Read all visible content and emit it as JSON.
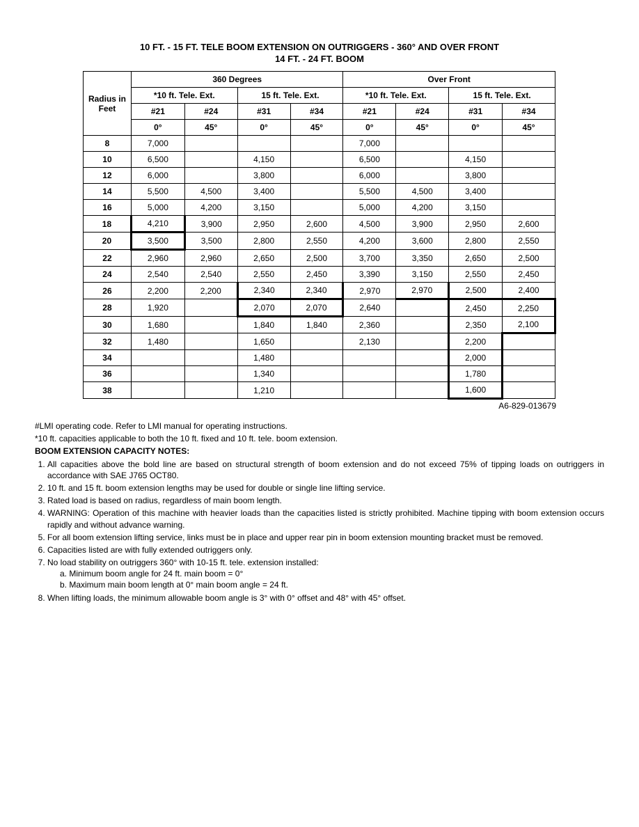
{
  "title_line1": "10 FT. - 15 FT. TELE BOOM EXTENSION ON OUTRIGGERS - 360° AND OVER FRONT",
  "title_line2": "14 FT. - 24 FT. BOOM",
  "reference": "A6-829-013679",
  "headers": {
    "radius": "Radius in Feet",
    "deg360": "360 Degrees",
    "overfront": "Over Front",
    "ext10": "*10 ft. Tele. Ext.",
    "ext15": "15 ft. Tele. Ext.",
    "c21": "#21",
    "c24": "#24",
    "c31": "#31",
    "c34": "#34",
    "a0": "0°",
    "a45": "45°"
  },
  "rows": [
    {
      "r": "8",
      "c": [
        "7,000",
        "",
        "",
        "",
        "7,000",
        "",
        "",
        ""
      ]
    },
    {
      "r": "10",
      "c": [
        "6,500",
        "",
        "4,150",
        "",
        "6,500",
        "",
        "4,150",
        ""
      ]
    },
    {
      "r": "12",
      "c": [
        "6,000",
        "",
        "3,800",
        "",
        "6,000",
        "",
        "3,800",
        ""
      ]
    },
    {
      "r": "14",
      "c": [
        "5,500",
        "4,500",
        "3,400",
        "",
        "5,500",
        "4,500",
        "3,400",
        ""
      ]
    },
    {
      "r": "16",
      "c": [
        "5,000",
        "4,200",
        "3,150",
        "",
        "5,000",
        "4,200",
        "3,150",
        ""
      ]
    },
    {
      "r": "18",
      "c": [
        "4,210",
        "3,900",
        "2,950",
        "2,600",
        "4,500",
        "3,900",
        "2,950",
        "2,600"
      ]
    },
    {
      "r": "20",
      "c": [
        "3,500",
        "3,500",
        "2,800",
        "2,550",
        "4,200",
        "3,600",
        "2,800",
        "2,550"
      ]
    },
    {
      "r": "22",
      "c": [
        "2,960",
        "2,960",
        "2,650",
        "2,500",
        "3,700",
        "3,350",
        "2,650",
        "2,500"
      ]
    },
    {
      "r": "24",
      "c": [
        "2,540",
        "2,540",
        "2,550",
        "2,450",
        "3,390",
        "3,150",
        "2,550",
        "2,450"
      ]
    },
    {
      "r": "26",
      "c": [
        "2,200",
        "2,200",
        "2,340",
        "2,340",
        "2,970",
        "2,970",
        "2,500",
        "2,400"
      ]
    },
    {
      "r": "28",
      "c": [
        "1,920",
        "",
        "2,070",
        "2,070",
        "2,640",
        "",
        "2,450",
        "2,250"
      ]
    },
    {
      "r": "30",
      "c": [
        "1,680",
        "",
        "1,840",
        "1,840",
        "2,360",
        "",
        "2,350",
        "2,100"
      ]
    },
    {
      "r": "32",
      "c": [
        "1,480",
        "",
        "1,650",
        "",
        "2,130",
        "",
        "2,200",
        ""
      ]
    },
    {
      "r": "34",
      "c": [
        "",
        "",
        "1,480",
        "",
        "",
        "",
        "2,000",
        ""
      ]
    },
    {
      "r": "36",
      "c": [
        "",
        "",
        "1,340",
        "",
        "",
        "",
        "1,780",
        ""
      ]
    },
    {
      "r": "38",
      "c": [
        "",
        "",
        "1,210",
        "",
        "",
        "",
        "1,600",
        ""
      ]
    }
  ],
  "bold_cells": {
    "5": {
      "0": "bold-bottom bold-left bold-right"
    },
    "6": {
      "0": "bold-left bold-right bold-bottom"
    },
    "9": {
      "2": "bold-bottom bold-left",
      "3": "bold-bottom bold-right",
      "5": "bold-bottom bold-right",
      "6": "bold-bottom",
      "7": "bold-bottom"
    },
    "10": {
      "2": "bold-left bold-bottom",
      "3": "bold-right bold-bottom",
      "6": "bold-left",
      "7": "bold-right"
    },
    "11": {
      "6": "bold-left",
      "7": "bold-right bold-bottom"
    },
    "12": {
      "6": "bold-left bold-right"
    },
    "13": {
      "6": "bold-left bold-right"
    },
    "14": {
      "6": "bold-left bold-right"
    },
    "15": {
      "6": "bold-left bold-right bold-bottom"
    }
  },
  "footnote1": "#LMI operating code. Refer to LMI manual for operating instructions.",
  "footnote2": "*10 ft. capacities applicable to both the 10 ft. fixed and 10 ft. tele. boom extension.",
  "notes_heading": "BOOM EXTENSION CAPACITY NOTES:",
  "notes": [
    "All capacities above the bold line are based on structural strength of boom extension and do not exceed 75% of tipping loads on outriggers in accordance with SAE J765 OCT80.",
    "10 ft. and 15 ft. boom extension lengths may be used for double or single line lifting service.",
    "Rated load is based on radius, regardless of main boom length.",
    "WARNING: Operation of this machine with heavier loads than the capacities listed is strictly prohibited. Machine tipping with boom extension occurs rapidly and without advance warning.",
    "For all boom extension lifting service, links must be in place and upper rear pin in boom extension mounting bracket must be removed.",
    "Capacities listed are with fully extended outriggers only.",
    "No load stability on outriggers 360° with 10-15 ft. tele. extension installed:",
    "When lifting loads, the minimum allowable boom angle is 3° with 0° offset and 48° with 45° offset."
  ],
  "note7a": "a. Minimum boom angle for 24 ft. main boom = 0°",
  "note7b": "b. Maximum main boom length at 0° main boom angle = 24 ft."
}
